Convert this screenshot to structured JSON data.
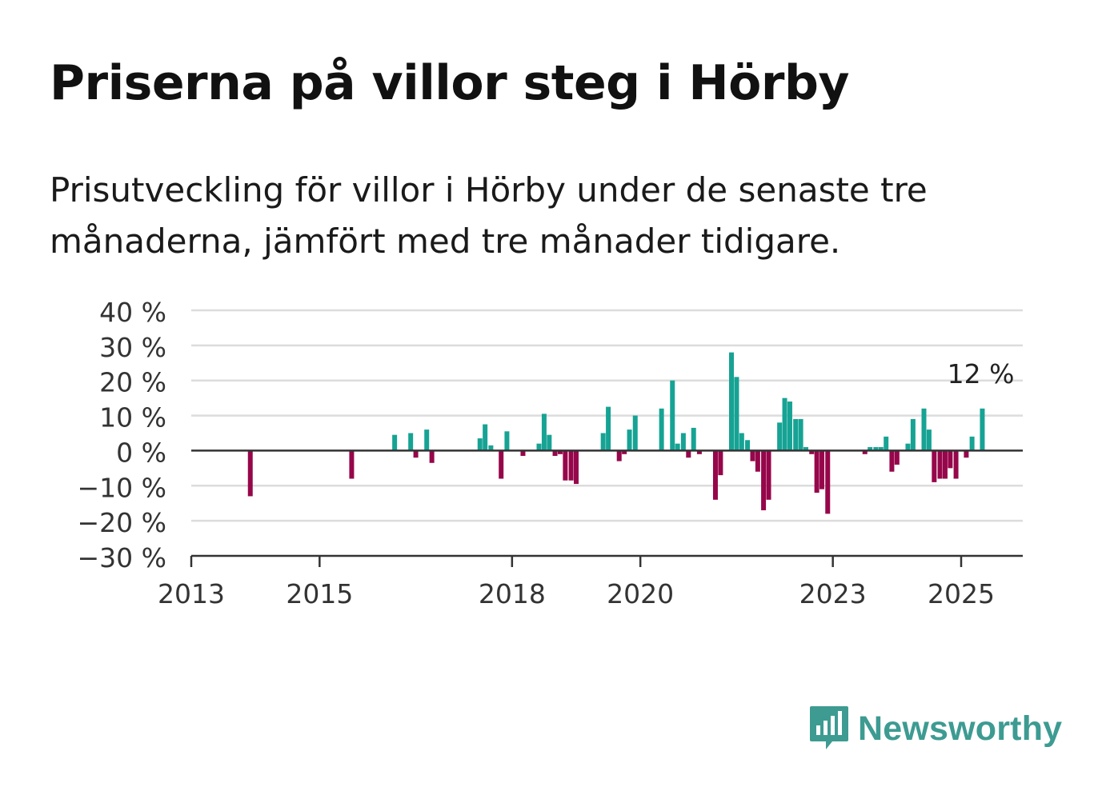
{
  "header": {
    "title": "Priserna på villor steg i Hörby",
    "subtitle": "Prisutveckling för villor i Hörby under de senaste tre månaderna, jämfört med tre månader tidigare."
  },
  "brand": {
    "name": "Newsworthy",
    "color": "#3d9b92"
  },
  "chart_data": {
    "type": "bar",
    "ylim": [
      -30,
      40
    ],
    "xlim": [
      2013,
      2026.5
    ],
    "y_ticks": [
      40,
      30,
      20,
      10,
      0,
      -10,
      -20,
      -30
    ],
    "y_tick_labels": [
      "40 %",
      "30 %",
      "20 %",
      "10 %",
      "0 %",
      "−10 %",
      "−20 %",
      "−30 %"
    ],
    "x_ticks": [
      2013,
      2015,
      2018,
      2020,
      2023,
      2025
    ],
    "x_tick_labels": [
      "2013",
      "2015",
      "2018",
      "2020",
      "2023",
      "2025"
    ],
    "grid": true,
    "colors": {
      "positive": "#16a394",
      "negative": "#96064a"
    },
    "annotation": {
      "text": "12 %",
      "x": 2025.33,
      "y": 12
    },
    "x": [
      2013.92,
      2015.5,
      2016.17,
      2016.42,
      2016.5,
      2016.67,
      2016.75,
      2017.5,
      2017.58,
      2017.67,
      2017.83,
      2017.92,
      2018.17,
      2018.42,
      2018.5,
      2018.58,
      2018.67,
      2018.75,
      2018.83,
      2018.92,
      2019.0,
      2019.42,
      2019.5,
      2019.67,
      2019.75,
      2019.83,
      2019.92,
      2020.33,
      2020.5,
      2020.58,
      2020.67,
      2020.75,
      2020.83,
      2020.92,
      2021.17,
      2021.25,
      2021.42,
      2021.5,
      2021.58,
      2021.67,
      2021.75,
      2021.83,
      2021.92,
      2022.0,
      2022.17,
      2022.25,
      2022.33,
      2022.42,
      2022.5,
      2022.58,
      2022.67,
      2022.75,
      2022.83,
      2022.92,
      2023.5,
      2023.58,
      2023.67,
      2023.75,
      2023.83,
      2023.92,
      2024.0,
      2024.17,
      2024.25,
      2024.42,
      2024.5,
      2024.58,
      2024.67,
      2024.75,
      2024.83,
      2024.92,
      2025.08,
      2025.17,
      2025.33
    ],
    "values": [
      -13,
      -8,
      4.5,
      5,
      -2,
      6,
      -3.5,
      3.5,
      7.5,
      1.5,
      -8,
      5.5,
      -1.5,
      2,
      10.5,
      4.5,
      -1.5,
      -1,
      -8.5,
      -8.5,
      -9.5,
      5,
      12.5,
      -3,
      -1,
      6,
      10,
      12,
      20,
      2,
      5,
      -2,
      6.5,
      -1,
      -14,
      -7,
      28,
      21,
      5,
      3,
      -3,
      -6,
      -17,
      -14,
      8,
      15,
      14,
      9,
      9,
      1,
      -1,
      -12,
      -11,
      -18,
      -1,
      1,
      1,
      1,
      4,
      -6,
      -4,
      2,
      9,
      12,
      6,
      -9,
      -8,
      -8,
      -5,
      -8,
      -2,
      4,
      12
    ]
  }
}
